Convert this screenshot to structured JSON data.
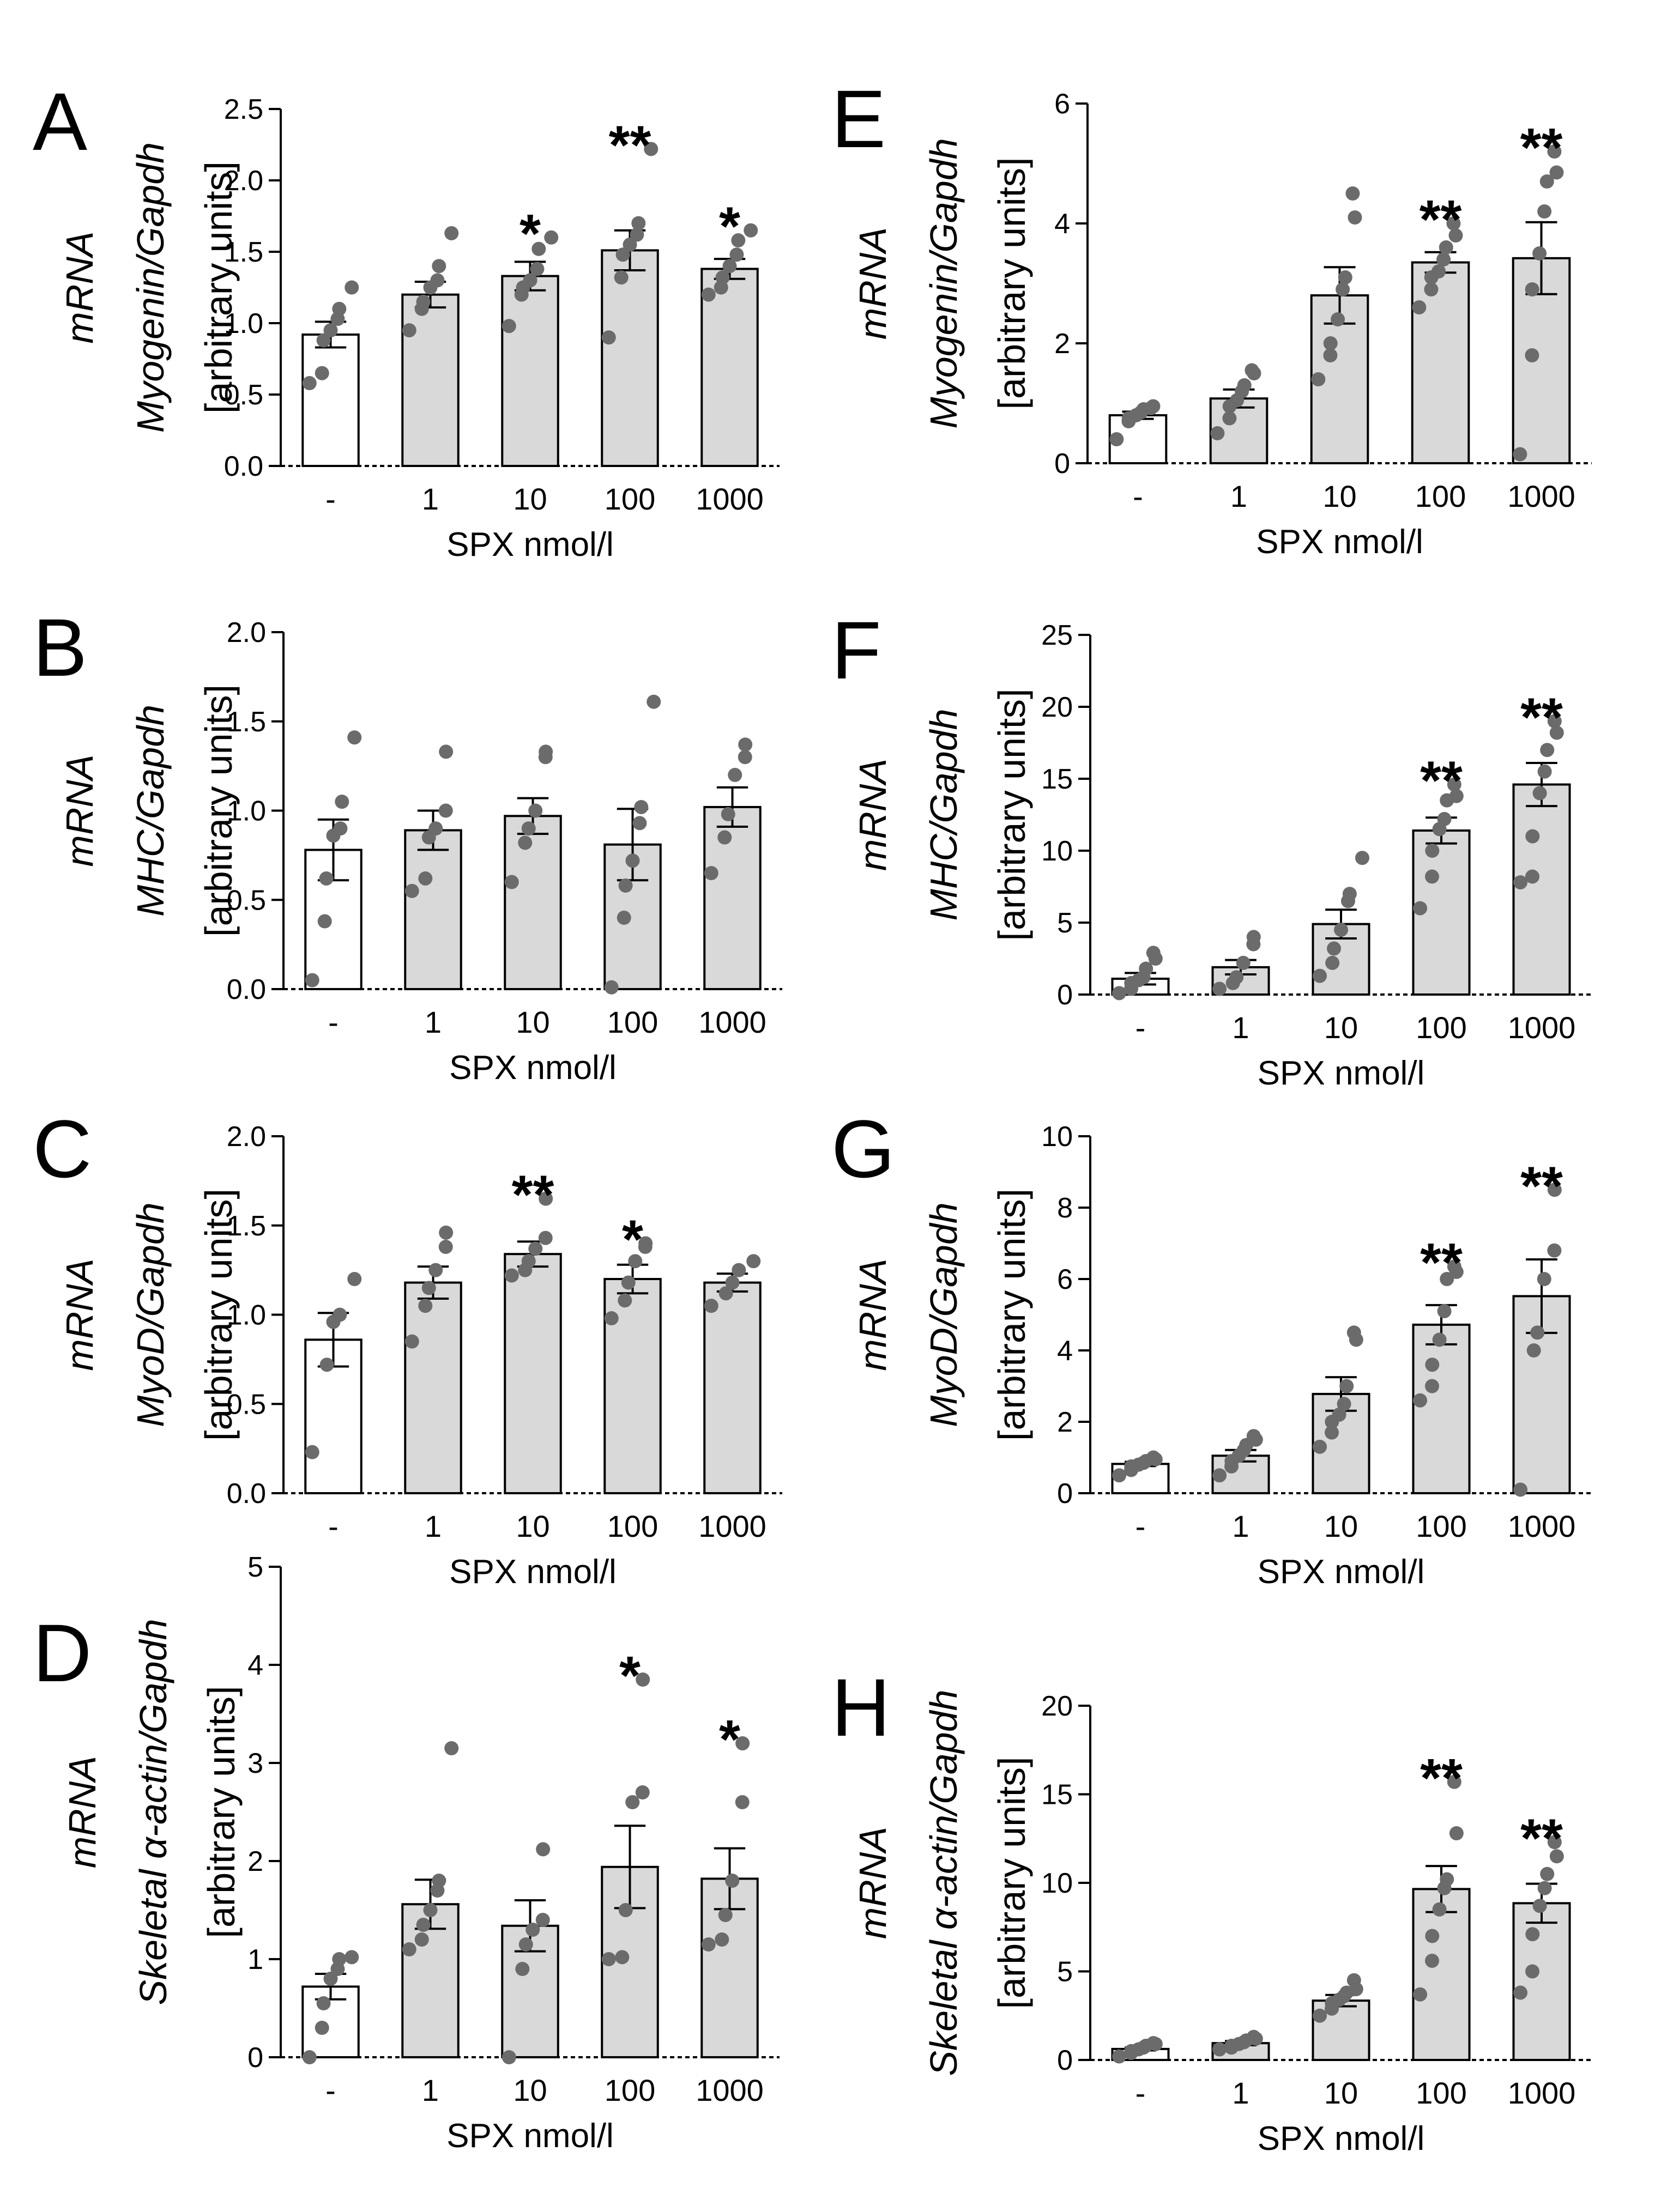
{
  "figure": {
    "colors": {
      "control_bar": "#ffffff",
      "treated_bar": "#d9d9d9",
      "point": "#6b6b6b",
      "line": "#000000"
    }
  },
  "chart_data": [
    {
      "panel": "A",
      "type": "bar",
      "categories": [
        "-",
        "1",
        "10",
        "100",
        "1000"
      ],
      "values": [
        0.92,
        1.2,
        1.33,
        1.51,
        1.38
      ],
      "sem": [
        0.09,
        0.09,
        0.1,
        0.14,
        0.07
      ],
      "points": [
        [
          0.58,
          0.65,
          0.88,
          0.95,
          1.03,
          1.1,
          1.25
        ],
        [
          0.95,
          1.1,
          1.15,
          1.25,
          1.3,
          1.4,
          1.63
        ],
        [
          0.98,
          1.2,
          1.25,
          1.3,
          1.38,
          1.52,
          1.6
        ],
        [
          0.9,
          1.32,
          1.48,
          1.55,
          1.62,
          1.7,
          2.22
        ],
        [
          1.2,
          1.25,
          1.32,
          1.4,
          1.48,
          1.58,
          1.65
        ]
      ],
      "significance": [
        "",
        "",
        "*",
        "**",
        "*"
      ],
      "ylim": [
        0,
        2.5
      ],
      "yticks": [
        "0.0",
        "0.5",
        "1.0",
        "1.5",
        "2.0",
        "2.5"
      ],
      "ylabel_lines": [
        "mRNA",
        "Myogenin/Gapdh",
        "[arbitrary units]"
      ],
      "xlabel": "SPX nmol/l"
    },
    {
      "panel": "B",
      "type": "bar",
      "categories": [
        "-",
        "1",
        "10",
        "100",
        "1000"
      ],
      "values": [
        0.78,
        0.89,
        0.97,
        0.81,
        1.02
      ],
      "sem": [
        0.17,
        0.11,
        0.1,
        0.2,
        0.11
      ],
      "points": [
        [
          0.05,
          0.38,
          0.62,
          0.86,
          0.9,
          1.05,
          1.41
        ],
        [
          0.55,
          0.62,
          0.85,
          0.9,
          1.0,
          1.33
        ],
        [
          0.6,
          0.82,
          0.9,
          1.0,
          1.3,
          1.33
        ],
        [
          0.01,
          0.4,
          0.58,
          0.72,
          0.93,
          1.02,
          1.61
        ],
        [
          0.65,
          0.85,
          0.98,
          1.2,
          1.3,
          1.37
        ]
      ],
      "significance": [
        "",
        "",
        "",
        "",
        ""
      ],
      "ylim": [
        0,
        2.0
      ],
      "yticks": [
        "0.0",
        "0.5",
        "1.0",
        "1.5",
        "2.0"
      ],
      "ylabel_lines": [
        "mRNA",
        "MHC/Gapdh",
        "[arbitrary units]"
      ],
      "xlabel": "SPX nmol/l"
    },
    {
      "panel": "C",
      "type": "bar",
      "categories": [
        "-",
        "1",
        "10",
        "100",
        "1000"
      ],
      "values": [
        0.86,
        1.18,
        1.34,
        1.2,
        1.18
      ],
      "sem": [
        0.15,
        0.09,
        0.07,
        0.08,
        0.05
      ],
      "points": [
        [
          0.23,
          0.72,
          0.96,
          1.0,
          1.2
        ],
        [
          0.85,
          1.05,
          1.15,
          1.25,
          1.38,
          1.46
        ],
        [
          1.22,
          1.25,
          1.3,
          1.37,
          1.43,
          1.65
        ],
        [
          0.98,
          1.08,
          1.18,
          1.3,
          1.38,
          1.4
        ],
        [
          1.05,
          1.12,
          1.18,
          1.25,
          1.3
        ]
      ],
      "significance": [
        "",
        "",
        "**",
        "*",
        ""
      ],
      "ylim": [
        0,
        2.0
      ],
      "yticks": [
        "0.0",
        "0.5",
        "1.0",
        "1.5",
        "2.0"
      ],
      "ylabel_lines": [
        "mRNA",
        "MyoD/Gapdh",
        "[arbitrary units]"
      ],
      "xlabel": "SPX nmol/l"
    },
    {
      "panel": "D",
      "type": "bar",
      "categories": [
        "-",
        "1",
        "10",
        "100",
        "1000"
      ],
      "values": [
        0.72,
        1.56,
        1.34,
        1.94,
        1.82
      ],
      "sem": [
        0.13,
        0.25,
        0.26,
        0.42,
        0.31
      ],
      "points": [
        [
          0.0,
          0.3,
          0.55,
          0.8,
          0.9,
          1.0,
          1.02
        ],
        [
          1.1,
          1.2,
          1.35,
          1.5,
          1.7,
          1.8,
          3.15
        ],
        [
          0.0,
          0.9,
          1.15,
          1.3,
          1.4,
          2.12
        ],
        [
          1.0,
          1.02,
          1.5,
          2.6,
          2.7,
          3.85
        ],
        [
          1.15,
          1.2,
          1.45,
          1.8,
          2.6,
          3.2
        ]
      ],
      "significance": [
        "",
        "",
        "",
        "*",
        "*"
      ],
      "ylim": [
        0,
        5
      ],
      "yticks": [
        "0",
        "1",
        "2",
        "3",
        "4",
        "5"
      ],
      "ylabel_lines": [
        "mRNA",
        "Skeletal α-actin/Gapdh",
        "[arbitrary units]"
      ],
      "xlabel": "SPX nmol/l"
    },
    {
      "panel": "E",
      "type": "bar",
      "categories": [
        "-",
        "1",
        "10",
        "100",
        "1000"
      ],
      "values": [
        0.8,
        1.08,
        2.8,
        3.35,
        3.42
      ],
      "sem": [
        0.06,
        0.15,
        0.47,
        0.17,
        0.6
      ],
      "points": [
        [
          0.4,
          0.7,
          0.75,
          0.8,
          0.85,
          0.9,
          0.95,
          0.92
        ],
        [
          0.5,
          0.75,
          0.95,
          1.05,
          1.2,
          1.3,
          1.5,
          1.55
        ],
        [
          1.4,
          1.8,
          2.0,
          2.4,
          2.9,
          3.1,
          4.1,
          4.5
        ],
        [
          2.6,
          2.9,
          3.1,
          3.2,
          3.4,
          3.6,
          3.8,
          4.0
        ],
        [
          0.15,
          1.8,
          2.9,
          3.5,
          4.2,
          4.7,
          4.85,
          5.2
        ]
      ],
      "significance": [
        "",
        "",
        "",
        "**",
        "**"
      ],
      "ylim": [
        0,
        6
      ],
      "yticks": [
        "0",
        "2",
        "4",
        "6"
      ],
      "ylabel_lines": [
        "mRNA",
        "Myogenin/Gapdh",
        "[arbitrary units]"
      ],
      "xlabel": "SPX nmol/l"
    },
    {
      "panel": "F",
      "type": "bar",
      "categories": [
        "-",
        "1",
        "10",
        "100",
        "1000"
      ],
      "values": [
        1.1,
        1.9,
        4.9,
        11.4,
        14.6
      ],
      "sem": [
        0.4,
        0.5,
        1.0,
        0.9,
        1.5
      ],
      "points": [
        [
          0.1,
          0.4,
          0.8,
          1.0,
          1.2,
          1.8,
          2.5,
          2.9
        ],
        [
          0.4,
          0.8,
          1.2,
          2.2,
          3.5,
          4.0
        ],
        [
          1.3,
          2.2,
          3.2,
          4.5,
          6.5,
          7.0,
          9.5
        ],
        [
          6.0,
          8.2,
          10.0,
          11.5,
          12.2,
          13.5,
          13.8,
          14.6
        ],
        [
          7.8,
          8.2,
          11.0,
          14.0,
          15.5,
          17.0,
          18.2,
          19.0
        ]
      ],
      "significance": [
        "",
        "",
        "",
        "**",
        "**"
      ],
      "ylim": [
        0,
        25
      ],
      "yticks": [
        "0",
        "5",
        "10",
        "15",
        "20",
        "25"
      ],
      "ylabel_lines": [
        "mRNA",
        "MHC/Gapdh",
        "[arbitrary units]"
      ],
      "xlabel": "SPX nmol/l"
    },
    {
      "panel": "G",
      "type": "bar",
      "categories": [
        "-",
        "1",
        "10",
        "100",
        "1000"
      ],
      "values": [
        0.82,
        1.05,
        2.78,
        4.72,
        5.52
      ],
      "sem": [
        0.06,
        0.16,
        0.47,
        0.55,
        1.03
      ],
      "points": [
        [
          0.5,
          0.65,
          0.75,
          0.8,
          0.85,
          0.9,
          0.95,
          1.0
        ],
        [
          0.5,
          0.75,
          0.9,
          1.05,
          1.2,
          1.35,
          1.5,
          1.6
        ],
        [
          1.3,
          1.7,
          2.0,
          2.2,
          2.5,
          3.0,
          4.3,
          4.5
        ],
        [
          2.6,
          3.0,
          3.6,
          4.3,
          5.1,
          6.0,
          6.2,
          6.35
        ],
        [
          0.1,
          4.0,
          4.5,
          6.0,
          6.8,
          8.5
        ]
      ],
      "significance": [
        "",
        "",
        "",
        "**",
        "**"
      ],
      "ylim": [
        0,
        10
      ],
      "yticks": [
        "0",
        "2",
        "4",
        "6",
        "8",
        "10"
      ],
      "ylabel_lines": [
        "mRNA",
        "MyoD/Gapdh",
        "[arbitrary units]"
      ],
      "xlabel": "SPX nmol/l"
    },
    {
      "panel": "H",
      "type": "bar",
      "categories": [
        "-",
        "1",
        "10",
        "100",
        "1000"
      ],
      "values": [
        0.62,
        0.95,
        3.35,
        9.65,
        8.85
      ],
      "sem": [
        0.08,
        0.12,
        0.32,
        1.3,
        1.1
      ],
      "points": [
        [
          0.2,
          0.4,
          0.5,
          0.6,
          0.7,
          0.8,
          0.9,
          0.95
        ],
        [
          0.6,
          0.7,
          0.8,
          0.9,
          1.0,
          1.1,
          1.2,
          1.3
        ],
        [
          2.5,
          2.9,
          3.2,
          3.4,
          3.6,
          3.8,
          4.0,
          4.5
        ],
        [
          3.7,
          5.6,
          7.0,
          8.5,
          9.7,
          10.2,
          12.8,
          15.7
        ],
        [
          3.8,
          5.0,
          7.1,
          8.7,
          9.7,
          10.5,
          11.5,
          12.3
        ]
      ],
      "significance": [
        "",
        "",
        "",
        "**",
        "**"
      ],
      "ylim": [
        0,
        20
      ],
      "yticks": [
        "0",
        "5",
        "10",
        "15",
        "20"
      ],
      "ylabel_lines": [
        "mRNA",
        "Skeletal α-actin/Gapdh",
        "[arbitrary units]"
      ],
      "xlabel": "SPX nmol/l"
    }
  ]
}
